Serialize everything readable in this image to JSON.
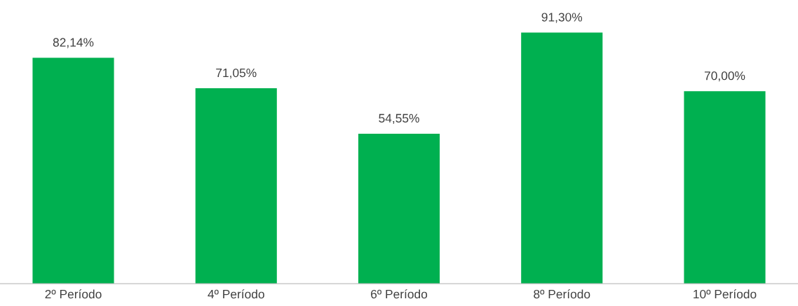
{
  "chart_data": {
    "type": "bar",
    "categories": [
      "2º Período",
      "4º Período",
      "6º Período",
      "8º Período",
      "10º Período"
    ],
    "values": [
      82.14,
      71.05,
      54.55,
      91.3,
      70.0
    ],
    "value_labels": [
      "82,14%",
      "71,05%",
      "54,55%",
      "91,30%",
      "70,00%"
    ],
    "color": "#00b050",
    "grid": false,
    "legend": false
  }
}
